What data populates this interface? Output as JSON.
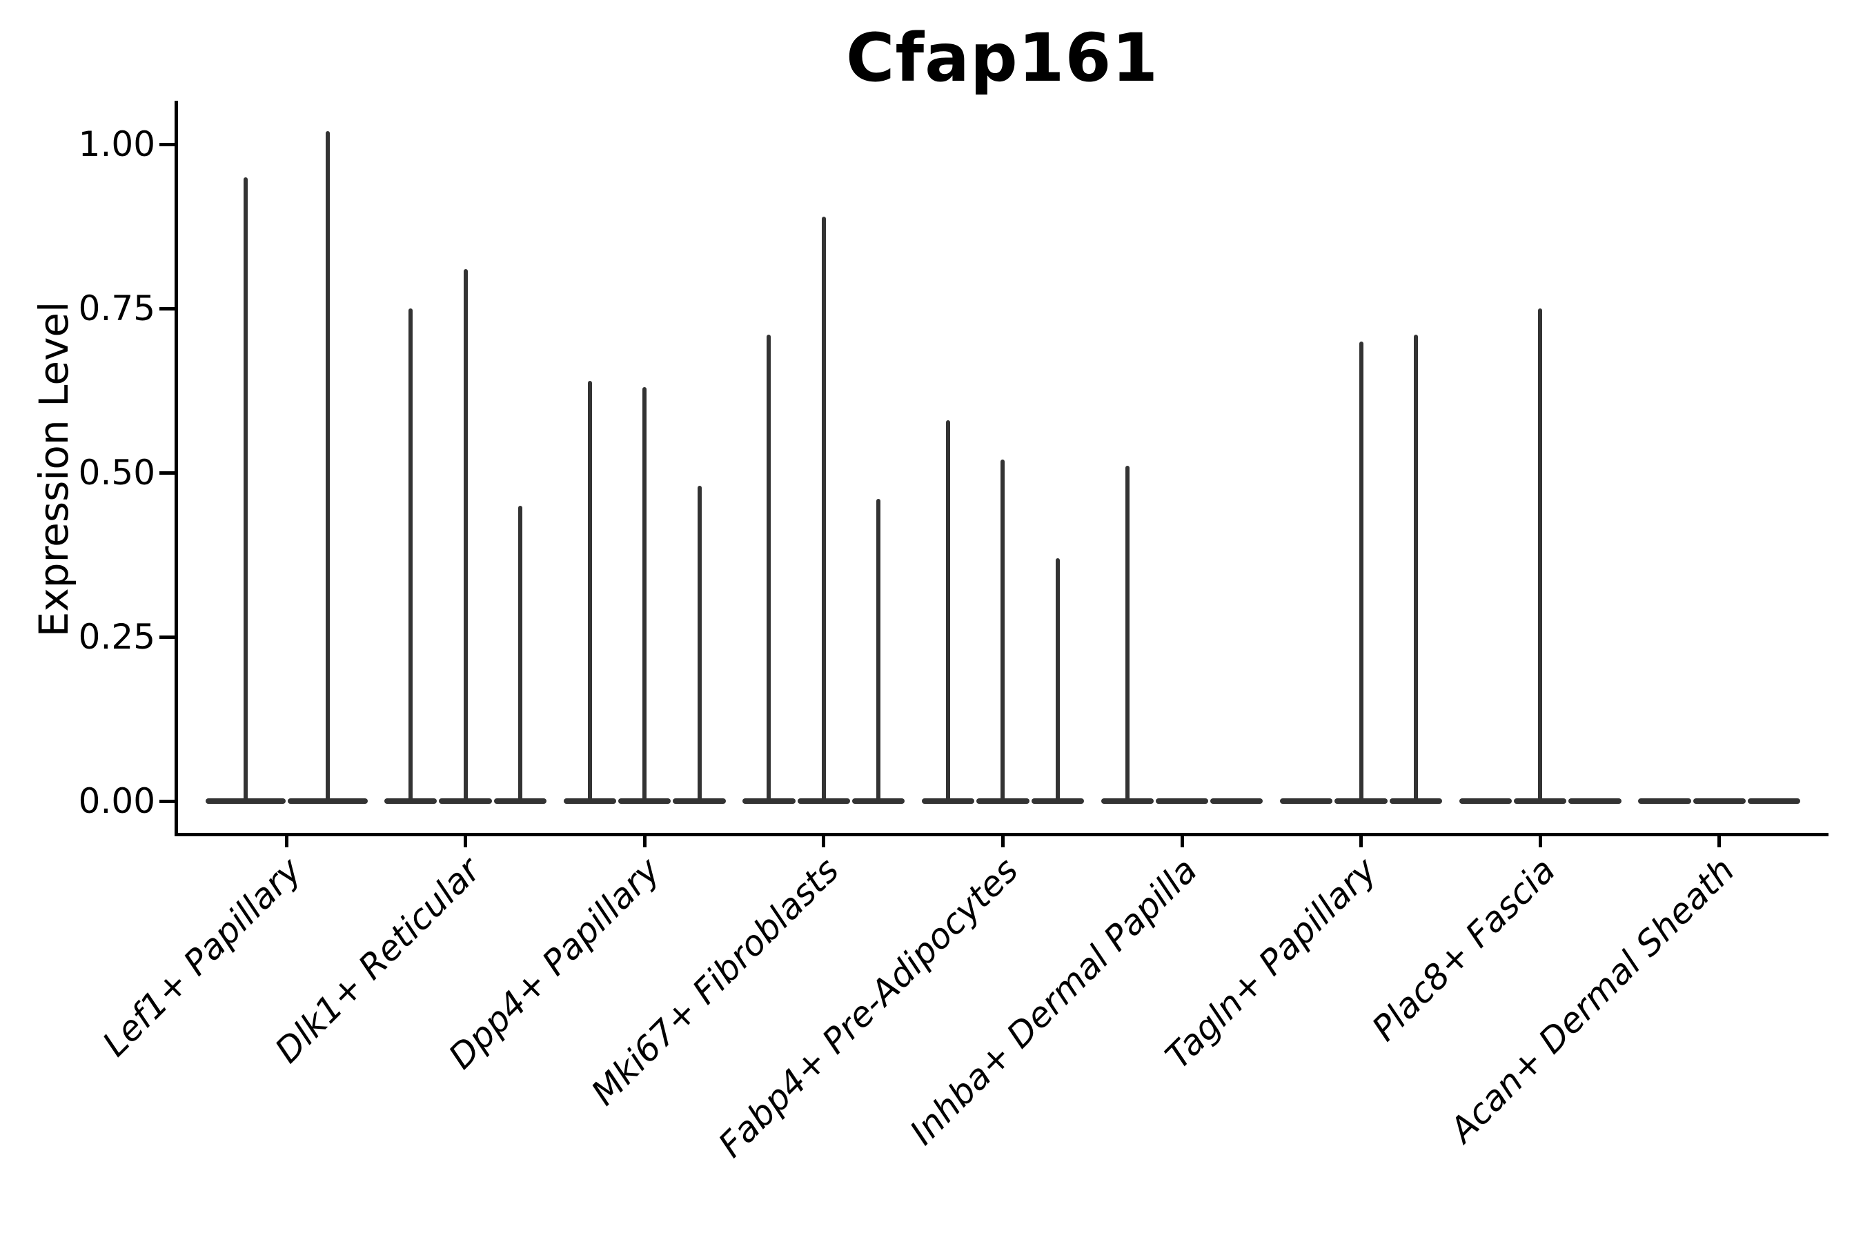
{
  "chart_data": {
    "type": "violin",
    "title": "Cfap161",
    "ylabel": "Expression Level",
    "xlabel": "",
    "grid": false,
    "legend": false,
    "ylim": [
      -0.05,
      1.07
    ],
    "yticks": {
      "values": [
        0.0,
        0.25,
        0.5,
        0.75,
        1.0
      ],
      "labels": [
        "0.00",
        "0.25",
        "0.50",
        "0.75",
        "1.00"
      ]
    },
    "categories": [
      "Lef1+ Papillary",
      "Dlk1+ Reticular",
      "Dpp4+ Papillary",
      "Mki67+ Fibroblasts",
      "Fabp4+ Pre-Adipocytes",
      "Inhba+ Dermal Papilla",
      "Tagln+ Papillary",
      "Plac8+ Fascia",
      "Acan+ Dermal Sheath"
    ],
    "groups": [
      {
        "label": "Lef1+ Papillary",
        "violin_max_values": [
          0.95,
          1.02
        ]
      },
      {
        "label": "Dlk1+ Reticular",
        "violin_max_values": [
          0.75,
          0.81,
          0.45
        ]
      },
      {
        "label": "Dpp4+ Papillary",
        "violin_max_values": [
          0.64,
          0.63,
          0.48
        ]
      },
      {
        "label": "Mki67+ Fibroblasts",
        "violin_max_values": [
          0.71,
          0.89,
          0.46
        ]
      },
      {
        "label": "Fabp4+ Pre-Adipocytes",
        "violin_max_values": [
          0.58,
          0.52,
          0.37
        ]
      },
      {
        "label": "Inhba+ Dermal Papilla",
        "violin_max_values": [
          0.51,
          0,
          0
        ]
      },
      {
        "label": "Tagln+ Papillary",
        "violin_max_values": [
          0,
          0.7,
          0.71
        ]
      },
      {
        "label": "Plac8+ Fascia",
        "violin_max_values": [
          0,
          0.75,
          0
        ]
      },
      {
        "label": "Acan+ Dermal Sheath",
        "violin_max_values": [
          0,
          0,
          0
        ]
      }
    ],
    "colors": {
      "violin": "#333333",
      "axis": "#000000",
      "text": "#000000",
      "background": "#ffffff"
    }
  }
}
